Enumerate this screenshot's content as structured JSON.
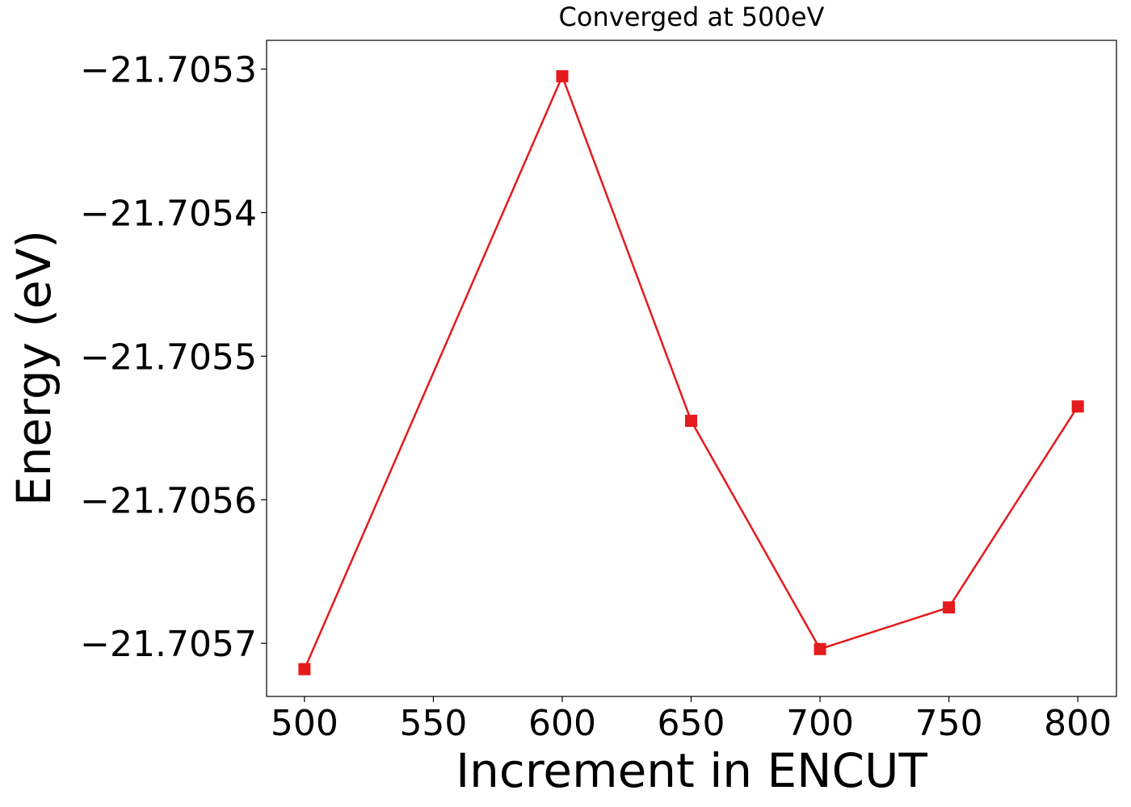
{
  "chart_data": {
    "type": "line",
    "title": "Converged at 500eV",
    "x_label": "Increment in ENCUT",
    "y_label": "Energy (eV)",
    "x": [
      500,
      600,
      650,
      700,
      750,
      800
    ],
    "series": [
      {
        "color": "#e41a1c",
        "marker": "square",
        "values": [
          -21.705718,
          -21.705305,
          -21.705545,
          -21.705704,
          -21.705675,
          -21.705535
        ]
      }
    ],
    "xlim": [
      485.3,
      815
    ],
    "xticks": [
      500,
      550,
      600,
      650,
      700,
      750,
      800
    ],
    "ylim": [
      -21.705737,
      -21.70528
    ],
    "yticks": [
      {
        "value": -21.7053,
        "label": "−21.7053"
      },
      {
        "value": -21.7054,
        "label": "−21.7054"
      },
      {
        "value": -21.7055,
        "label": "−21.7055"
      },
      {
        "value": -21.7056,
        "label": "−21.7056"
      },
      {
        "value": -21.7057,
        "label": "−21.7057"
      }
    ],
    "grid": false
  }
}
